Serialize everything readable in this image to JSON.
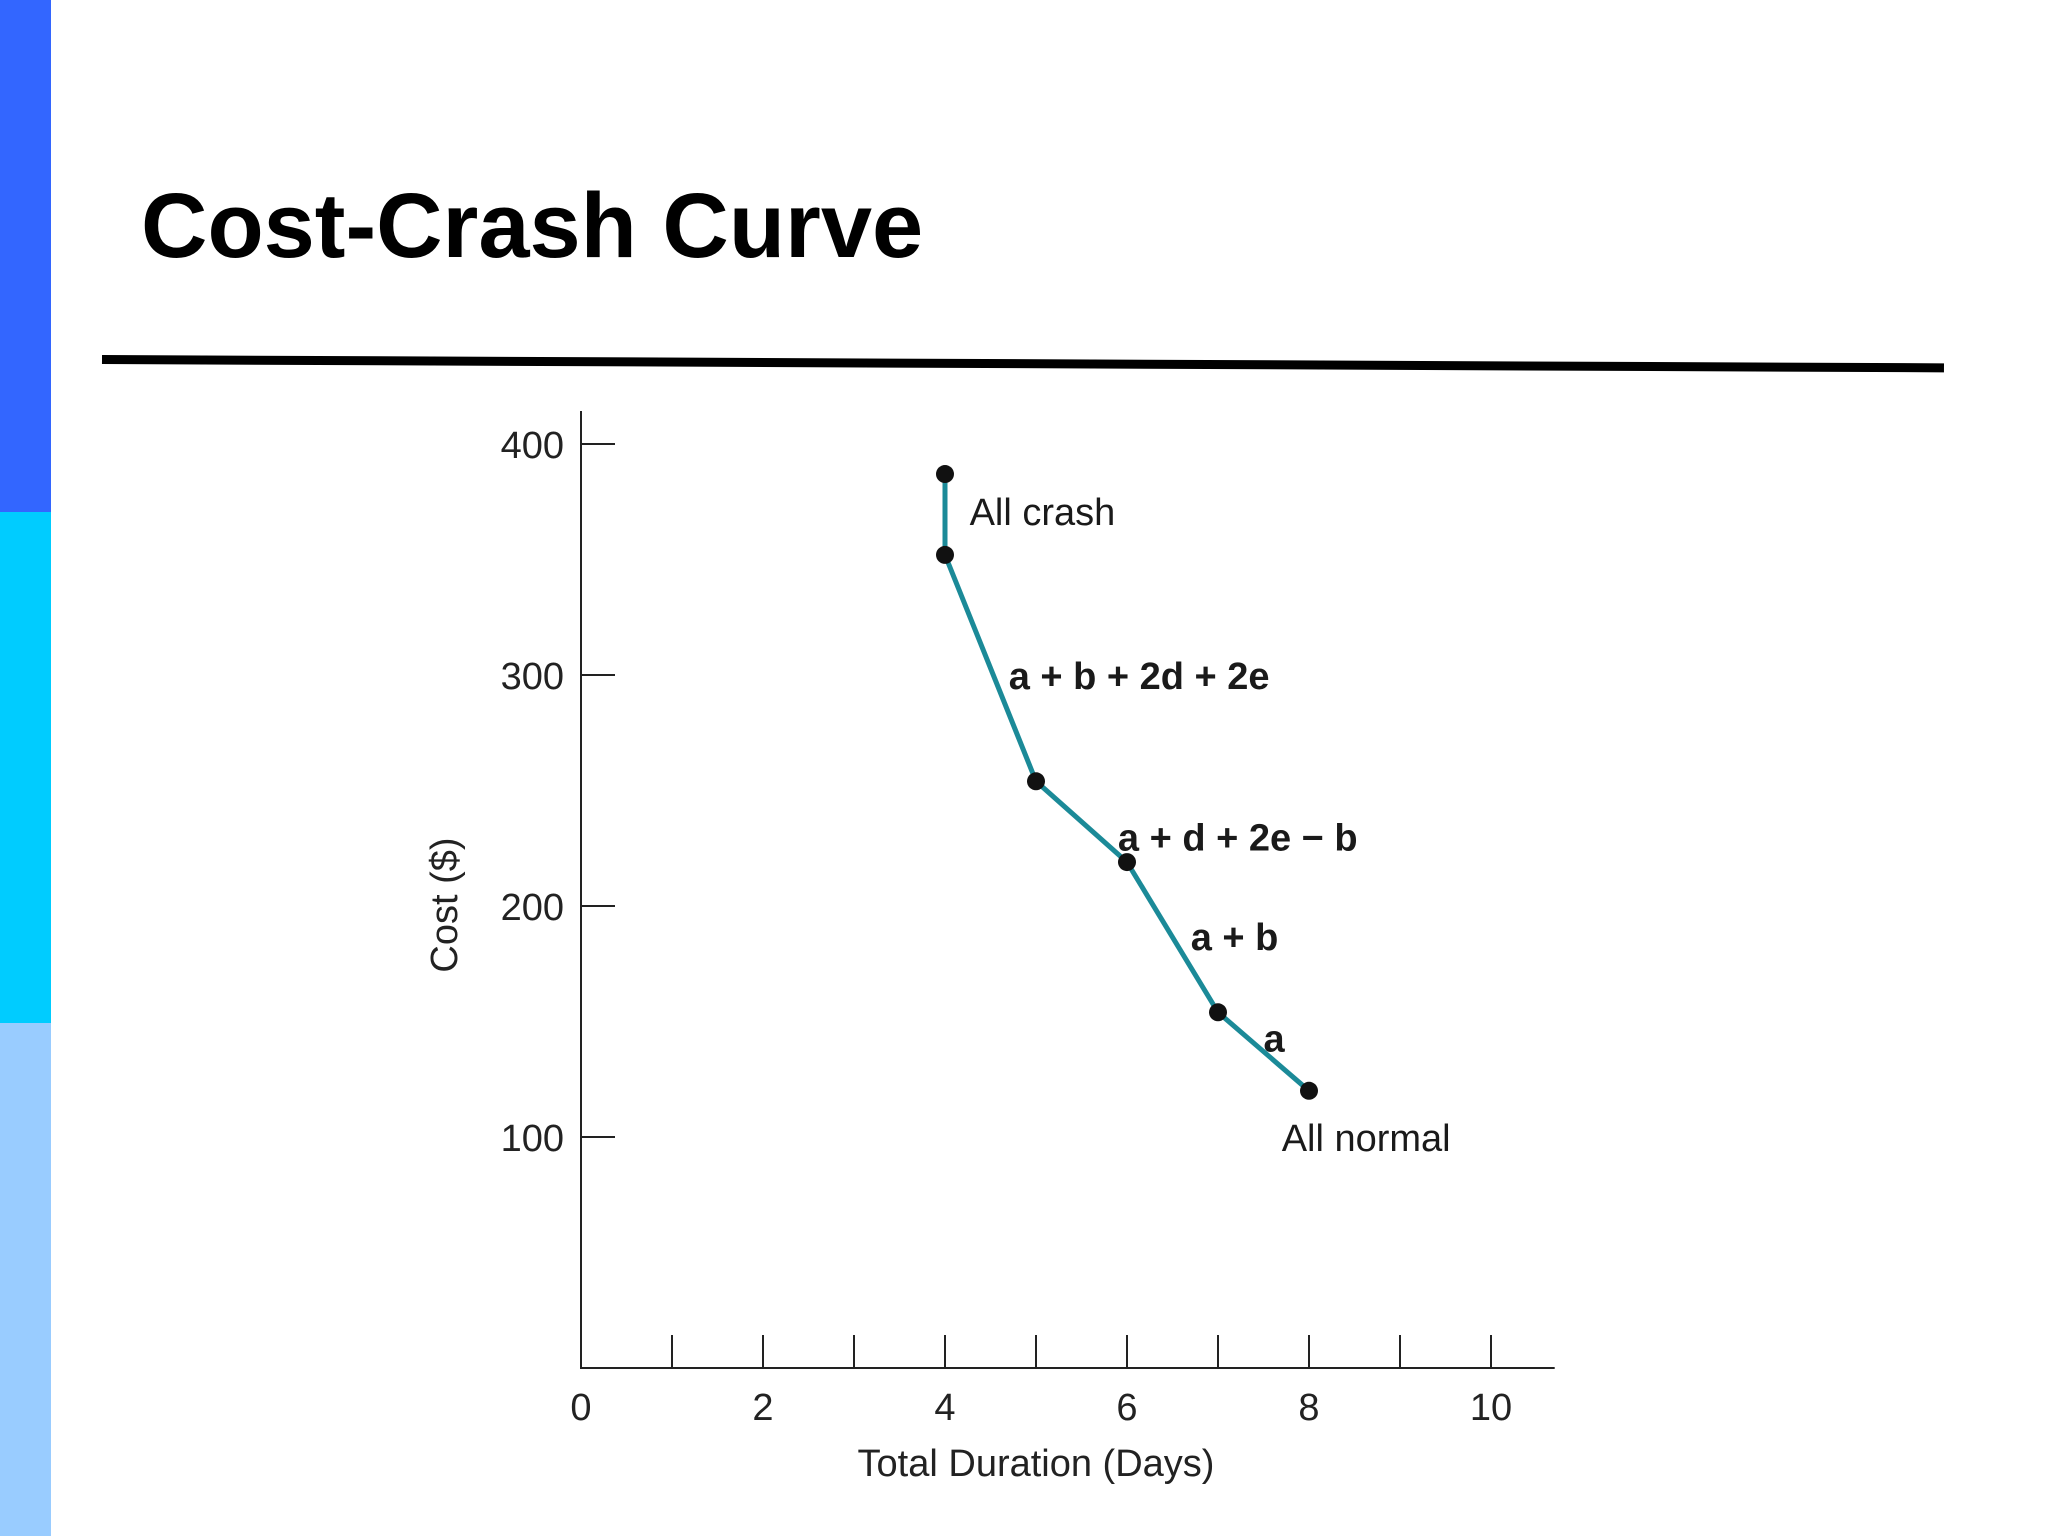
{
  "slide": {
    "title": "Cost-Crash Curve",
    "accent_colors": [
      "#3366FF",
      "#00CCFF",
      "#99CCFF"
    ]
  },
  "chart_data": {
    "type": "line",
    "title": "",
    "xlabel": "Total Duration (Days)",
    "ylabel": "Cost ($)",
    "xlim": [
      0,
      10.7
    ],
    "ylim": [
      0,
      420
    ],
    "x_ticks": [
      0,
      2,
      4,
      6,
      8,
      10
    ],
    "x_minor_ticks": [
      1,
      2,
      3,
      4,
      5,
      6,
      7,
      8,
      9,
      10
    ],
    "y_ticks": [
      100,
      200,
      300,
      400
    ],
    "grid": false,
    "line_color": "#1B8A98",
    "points": [
      {
        "x": 8,
        "y": 120
      },
      {
        "x": 7,
        "y": 154
      },
      {
        "x": 6,
        "y": 219
      },
      {
        "x": 5,
        "y": 254
      },
      {
        "x": 4,
        "y": 352
      },
      {
        "x": 4,
        "y": 387
      }
    ],
    "annotations": [
      {
        "text": "All normal",
        "x": 7.7,
        "y": 100,
        "bold": false
      },
      {
        "text": "a",
        "x": 7.5,
        "y": 143,
        "bold": true
      },
      {
        "text": "a + b",
        "x": 6.7,
        "y": 187,
        "bold": true
      },
      {
        "text": "a + d + 2e − b",
        "x": 5.9,
        "y": 230,
        "bold": true
      },
      {
        "text": "a + b + 2d + 2e",
        "x": 4.7,
        "y": 300,
        "bold": true
      },
      {
        "text": "All crash",
        "x": 4.27,
        "y": 371,
        "bold": false
      }
    ]
  }
}
